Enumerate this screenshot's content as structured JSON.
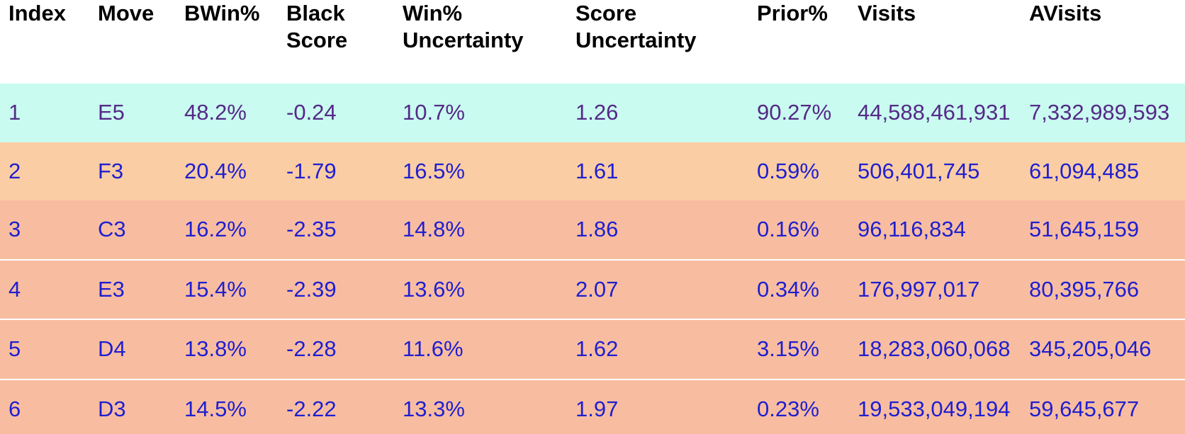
{
  "colors": {
    "background": "#ffffff",
    "header_text": "#000000",
    "selected_row_bg": "#c9fbf1",
    "selected_row_text": "#542a86",
    "second_row_bg": "#fbcda4",
    "other_rows_bg": "#f8bda1",
    "data_text_blue": "#1f1fcf"
  },
  "table": {
    "columns": [
      {
        "key": "index",
        "label": "Index"
      },
      {
        "key": "move",
        "label": "Move"
      },
      {
        "key": "bwin",
        "label": "BWin%"
      },
      {
        "key": "black_score",
        "label": "Black Score"
      },
      {
        "key": "win_uncertainty",
        "label": "Win% Uncertainty"
      },
      {
        "key": "score_uncertainty",
        "label": "Score Uncertainty"
      },
      {
        "key": "prior",
        "label": "Prior%"
      },
      {
        "key": "visits",
        "label": "Visits"
      },
      {
        "key": "avisits",
        "label": "AVisits"
      }
    ],
    "rows": [
      {
        "index": "1",
        "move": "E5",
        "bwin": "48.2%",
        "black_score": "-0.24",
        "win_uncertainty": "10.7%",
        "score_uncertainty": "1.26",
        "prior": "90.27%",
        "visits": "44,588,461,931",
        "avisits": "7,332,989,593"
      },
      {
        "index": "2",
        "move": "F3",
        "bwin": "20.4%",
        "black_score": "-1.79",
        "win_uncertainty": "16.5%",
        "score_uncertainty": "1.61",
        "prior": "0.59%",
        "visits": "506,401,745",
        "avisits": "61,094,485"
      },
      {
        "index": "3",
        "move": "C3",
        "bwin": "16.2%",
        "black_score": "-2.35",
        "win_uncertainty": "14.8%",
        "score_uncertainty": "1.86",
        "prior": "0.16%",
        "visits": "96,116,834",
        "avisits": "51,645,159"
      },
      {
        "index": "4",
        "move": "E3",
        "bwin": "15.4%",
        "black_score": "-2.39",
        "win_uncertainty": "13.6%",
        "score_uncertainty": "2.07",
        "prior": "0.34%",
        "visits": "176,997,017",
        "avisits": "80,395,766"
      },
      {
        "index": "5",
        "move": "D4",
        "bwin": "13.8%",
        "black_score": "-2.28",
        "win_uncertainty": "11.6%",
        "score_uncertainty": "1.62",
        "prior": "3.15%",
        "visits": "18,283,060,068",
        "avisits": "345,205,046"
      },
      {
        "index": "6",
        "move": "D3",
        "bwin": "14.5%",
        "black_score": "-2.22",
        "win_uncertainty": "13.3%",
        "score_uncertainty": "1.97",
        "prior": "0.23%",
        "visits": "19,533,049,194",
        "avisits": "59,645,677"
      }
    ]
  }
}
